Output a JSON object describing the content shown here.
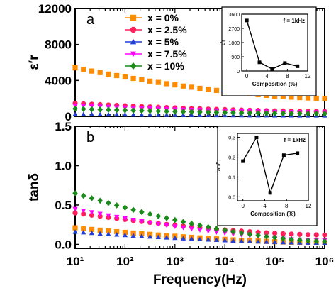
{
  "chart_data": [
    {
      "panel": "a",
      "type": "scatter",
      "ylabel": "ε′r",
      "xlabel": "",
      "xscale": "log",
      "xlim": [
        10,
        1000000
      ],
      "ylim": [
        0,
        12000
      ],
      "yticks": [
        "0",
        "4000",
        "8000",
        "12000"
      ],
      "legend": {
        "placement": "top-center",
        "entries": [
          "x = 0%",
          "x = 2.5%",
          "x = 5%",
          "x = 7.5%",
          "x = 10%"
        ]
      },
      "series": [
        {
          "name": "x = 0%",
          "color": "#ff8c00",
          "marker": "square",
          "y_start": 5400,
          "y_end": 2000
        },
        {
          "name": "x = 2.5%",
          "color": "#ff1f5a",
          "marker": "circle",
          "y_start": 1450,
          "y_end": 550
        },
        {
          "name": "x = 5%",
          "color": "#1f3fd6",
          "marker": "triangle",
          "y_start": 250,
          "y_end": 100
        },
        {
          "name": "x = 7.5%",
          "color": "#ff00ff",
          "marker": "triangle-down",
          "y_start": 1200,
          "y_end": 450
        },
        {
          "name": "x = 10%",
          "color": "#1a8a1a",
          "marker": "diamond",
          "y_start": 850,
          "y_end": 300
        }
      ],
      "inset": {
        "type": "line",
        "annotation": "f = 1kHz",
        "xlabel": "Composition (%)",
        "ylabel": "ε′r",
        "xticks": [
          "0",
          "4",
          "8",
          "12"
        ],
        "yticks": [
          "0",
          "900",
          "1800",
          "2700",
          "3600"
        ],
        "xlim": [
          -1,
          12
        ],
        "ylim": [
          0,
          3600
        ],
        "x": [
          0,
          2.5,
          5,
          7.5,
          10
        ],
        "y": [
          3200,
          550,
          120,
          500,
          300
        ]
      }
    },
    {
      "panel": "b",
      "type": "scatter",
      "ylabel": "tanδ",
      "xlabel": "Frequency(Hz)",
      "xscale": "log",
      "xlim": [
        10,
        1000000
      ],
      "ylim": [
        -0.05,
        1.5
      ],
      "yticks": [
        "0.0",
        "0.5",
        "1.0",
        "1.5"
      ],
      "xticks": [
        "10¹",
        "10²",
        "10³",
        "10⁴",
        "10⁵",
        "10⁶"
      ],
      "series": [
        {
          "name": "x = 0%",
          "color": "#ff8c00",
          "marker": "square",
          "y_start": 0.21,
          "y_end": 0.02
        },
        {
          "name": "x = 2.5%",
          "color": "#ff1f5a",
          "marker": "circle",
          "y_start": 0.4,
          "y_end": 0.12
        },
        {
          "name": "x = 5%",
          "color": "#1f3fd6",
          "marker": "triangle",
          "y_start": 0.16,
          "y_end": 0.02
        },
        {
          "name": "x = 7.5%",
          "color": "#ff00ff",
          "marker": "triangle-down",
          "y_start": 0.45,
          "y_end": 0.05
        },
        {
          "name": "x = 10%",
          "color": "#1a8a1a",
          "marker": "diamond",
          "y_start": 0.65,
          "y_end": 0.04
        }
      ],
      "inset": {
        "type": "line",
        "annotation": "f = 1kHz",
        "xlabel": "Composition (%)",
        "ylabel": "tanδ",
        "xticks": [
          "0",
          "4",
          "8",
          "12"
        ],
        "yticks": [
          "0.0",
          "0.1",
          "0.2",
          "0.3"
        ],
        "xlim": [
          -1,
          12
        ],
        "ylim": [
          -0.02,
          0.32
        ],
        "x": [
          0,
          2.5,
          5,
          7.5,
          10
        ],
        "y": [
          0.18,
          0.3,
          0.02,
          0.21,
          0.22
        ]
      }
    }
  ]
}
